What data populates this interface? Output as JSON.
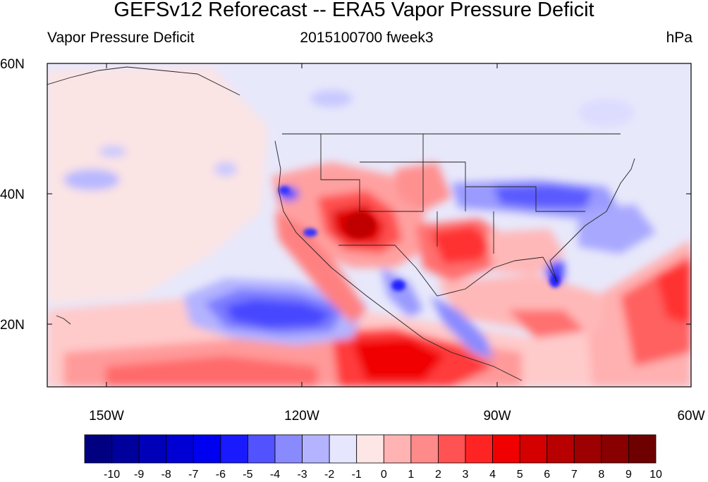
{
  "title": "GEFSv12 Reforecast -- ERA5 Vapor Pressure Deficit",
  "subtitle_left": "Vapor Pressure Deficit",
  "subtitle_center": "2015100700 fweek3",
  "subtitle_right": "hPa",
  "lat_labels": [
    "60N",
    "40N",
    "20N"
  ],
  "lon_labels": [
    "150W",
    "120W",
    "90W",
    "60W"
  ],
  "colorbar": {
    "labels": [
      "-10",
      "-9",
      "-8",
      "-7",
      "-6",
      "-5",
      "-4",
      "-3",
      "-2",
      "-1",
      "0",
      "1",
      "2",
      "3",
      "4",
      "5",
      "6",
      "7",
      "8",
      "9",
      "10"
    ],
    "colors": [
      "#000080",
      "#00009c",
      "#0000b8",
      "#0000d4",
      "#0000f0",
      "#1a1aff",
      "#5252ff",
      "#8a8aff",
      "#b3b3ff",
      "#e6e6ff",
      "#ffe6e6",
      "#ffb3b3",
      "#ff8a8a",
      "#ff5252",
      "#ff2424",
      "#f00000",
      "#d40000",
      "#b80000",
      "#9c0000",
      "#880000",
      "#6f0000"
    ]
  }
}
